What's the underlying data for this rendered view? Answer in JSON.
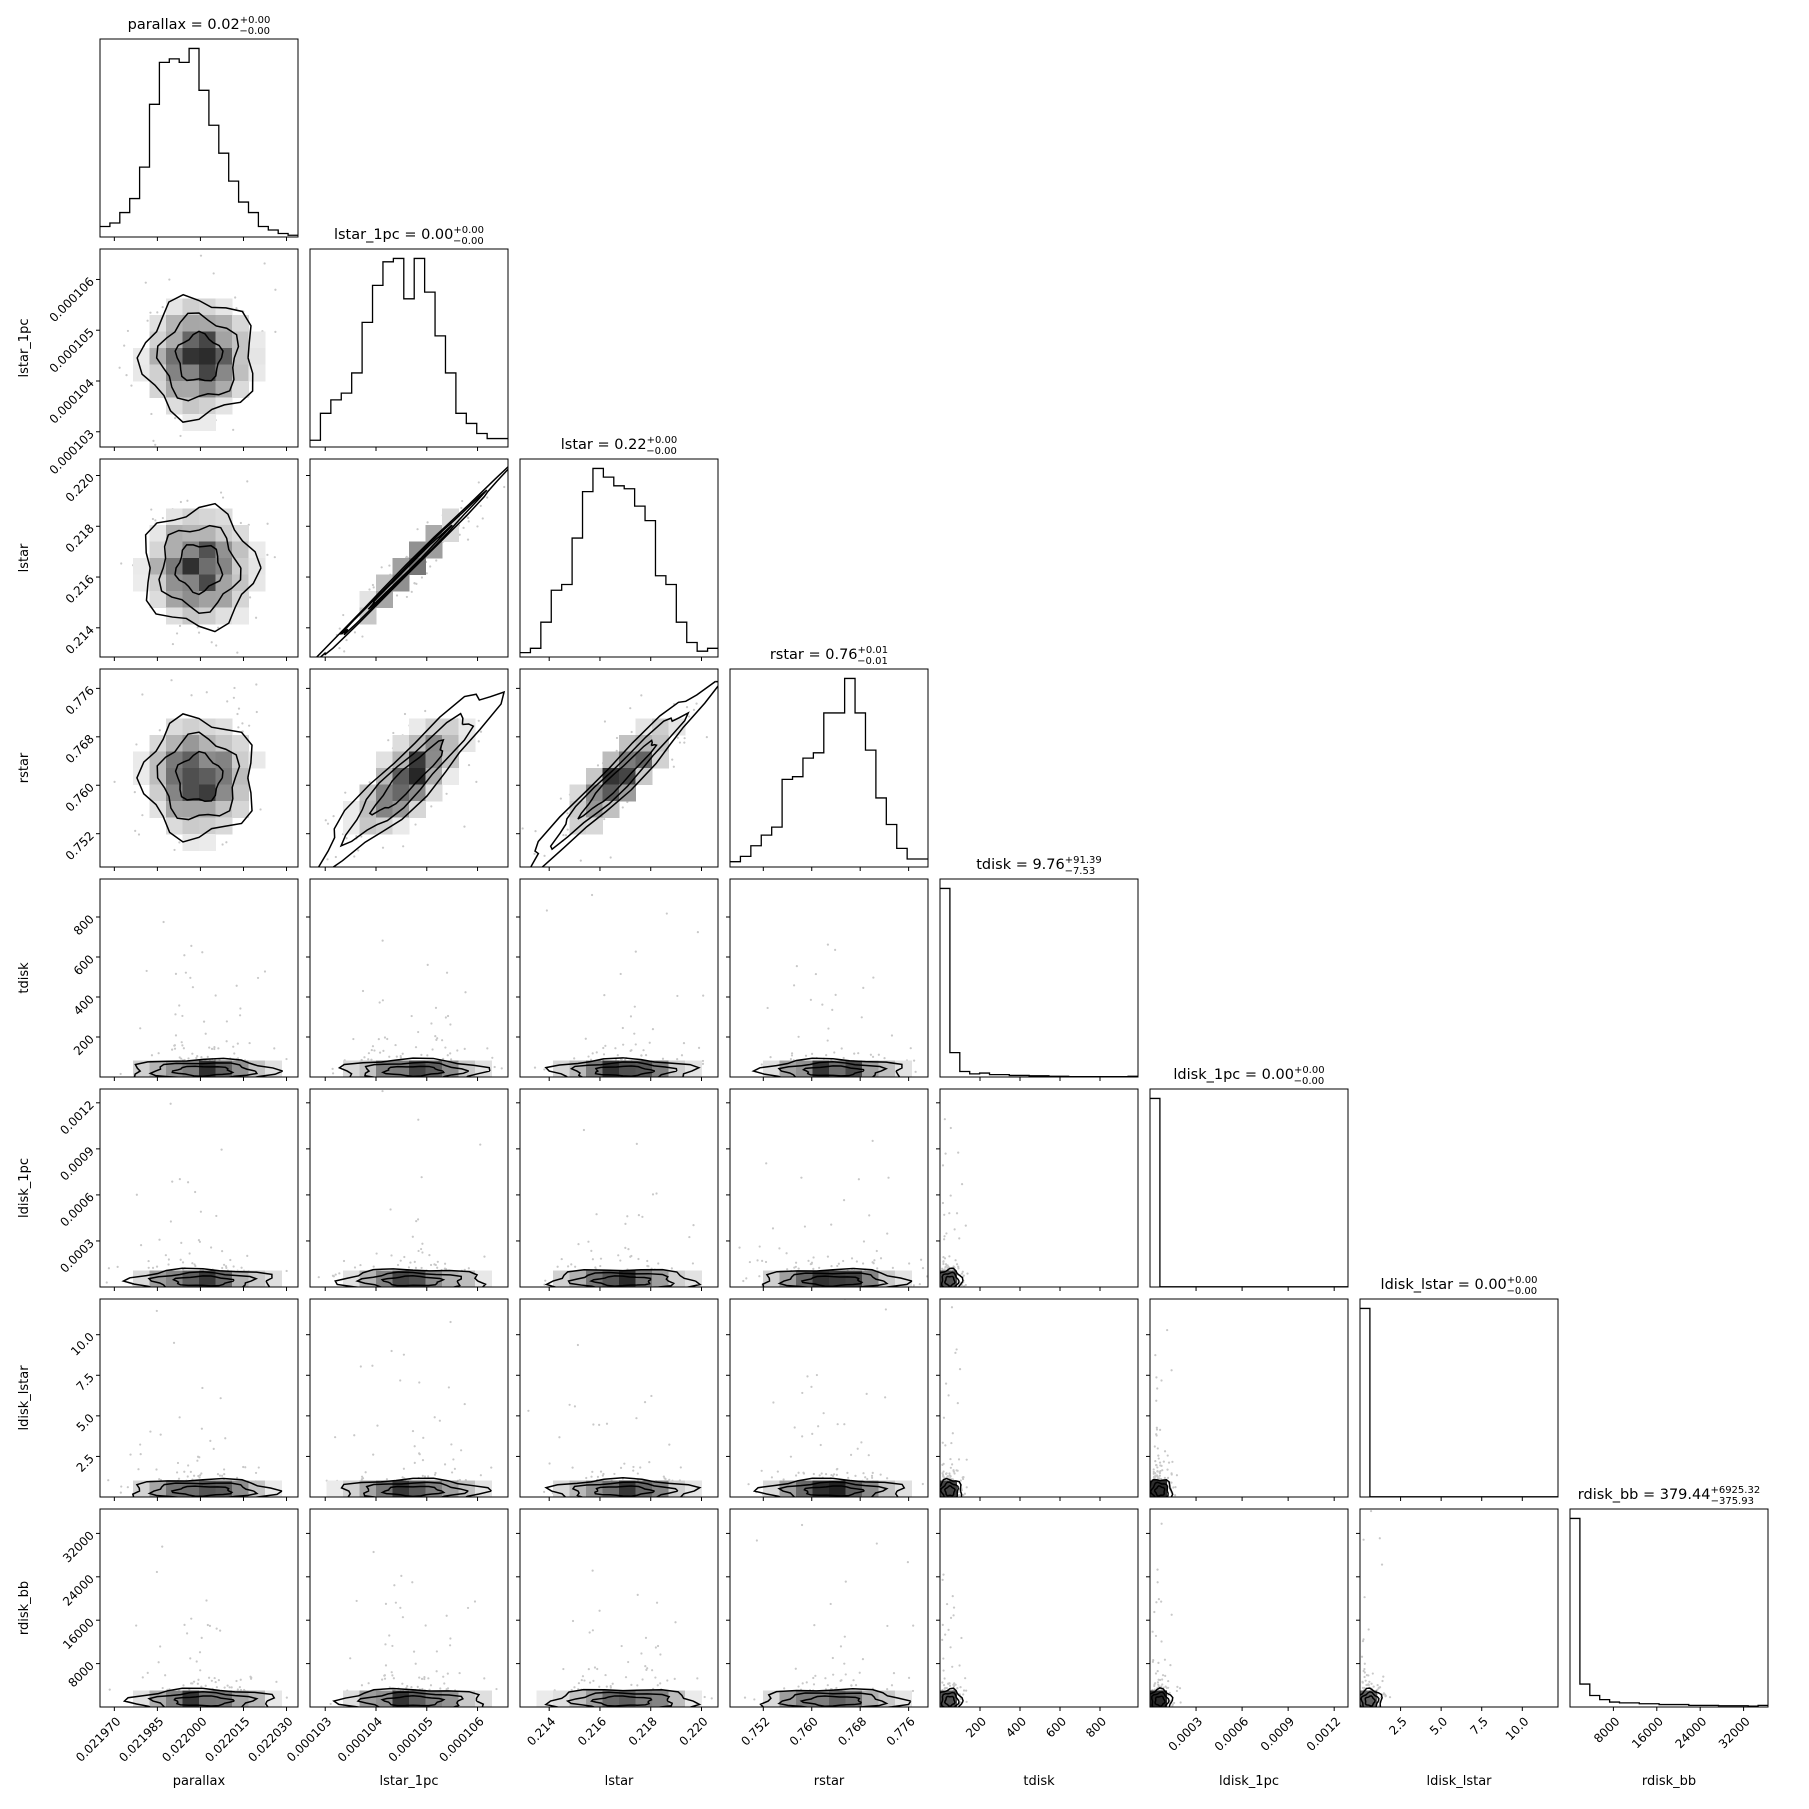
{
  "chart_data": {
    "type": "corner",
    "params": [
      {
        "name": "parallax",
        "label": "parallax",
        "title": "parallax = 0.02",
        "title_sup": "+0.00",
        "title_sub": "−0.00",
        "range": [
          0.021965,
          0.022034
        ],
        "ticks": [
          {
            "v": 0.02197,
            "t": "0.021970"
          },
          {
            "v": 0.021985,
            "t": "0.021985"
          },
          {
            "v": 0.022,
            "t": "0.022000"
          },
          {
            "v": 0.022015,
            "t": "0.022015"
          },
          {
            "v": 0.02203,
            "t": "0.022030"
          }
        ],
        "hist": [
          3,
          4,
          7,
          11,
          20,
          38,
          50,
          51,
          50,
          54,
          42,
          32,
          24,
          16,
          10,
          7,
          3,
          2,
          1,
          0.5
        ]
      },
      {
        "name": "lstar_1pc",
        "label": "lstar_1pc",
        "title": "lstar_1pc = 0.00",
        "title_sup": "+0.00",
        "title_sub": "−0.00",
        "range": [
          0.0001027,
          0.0001066
        ],
        "ticks": [
          {
            "v": 0.000103,
            "t": "0.000103"
          },
          {
            "v": 0.000104,
            "t": "0.000104"
          },
          {
            "v": 0.000105,
            "t": "0.000105"
          },
          {
            "v": 0.000106,
            "t": "0.000106"
          }
        ],
        "hist": [
          2,
          10,
          14,
          16,
          22,
          37,
          48,
          55,
          56,
          44,
          56,
          46,
          33,
          22,
          10,
          7,
          4,
          2.5,
          2.5
        ]
      },
      {
        "name": "lstar",
        "label": "lstar",
        "title": "lstar = 0.22",
        "title_sup": "+0.00",
        "title_sub": "−0.00",
        "range": [
          0.21285,
          0.22065
        ],
        "ticks": [
          {
            "v": 0.214,
            "t": "0.214"
          },
          {
            "v": 0.216,
            "t": "0.216"
          },
          {
            "v": 0.218,
            "t": "0.218"
          },
          {
            "v": 0.22,
            "t": "0.220"
          }
        ],
        "hist": [
          1.5,
          3,
          12,
          23,
          25,
          41,
          57,
          65,
          62,
          59,
          58,
          52,
          47,
          28,
          25,
          12,
          5,
          2,
          3
        ]
      },
      {
        "name": "rstar",
        "label": "rstar",
        "title": "rstar = 0.76",
        "title_sup": "+0.01",
        "title_sub": "−0.01",
        "range": [
          0.7465,
          0.7792
        ],
        "ticks": [
          {
            "v": 0.752,
            "t": "0.752"
          },
          {
            "v": 0.76,
            "t": "0.760"
          },
          {
            "v": 0.768,
            "t": "0.768"
          },
          {
            "v": 0.776,
            "t": "0.776"
          }
        ],
        "hist": [
          2,
          4,
          8,
          12,
          15,
          33,
          34,
          41,
          43,
          58,
          58,
          71,
          58,
          44,
          26,
          16,
          7,
          3,
          3
        ]
      },
      {
        "name": "tdisk",
        "label": "tdisk",
        "title": "tdisk = 9.76",
        "title_sup": "+91.39",
        "title_sub": "−7.53",
        "range": [
          0,
          990
        ],
        "ticks": [
          {
            "v": 200,
            "t": "200"
          },
          {
            "v": 400,
            "t": "400"
          },
          {
            "v": 600,
            "t": "600"
          },
          {
            "v": 800,
            "t": "800"
          }
        ],
        "hist": [
          240,
          31,
          7,
          4,
          5,
          3,
          3,
          2,
          2,
          1.5,
          1.5,
          1,
          1,
          0.5,
          0.5,
          0.5,
          0.5,
          0.5,
          0.5,
          1
        ]
      },
      {
        "name": "ldisk_1pc",
        "label": "ldisk_1pc",
        "title": "ldisk_1pc = 0.00",
        "title_sup": "+0.00",
        "title_sub": "−0.00",
        "range": [
          0,
          0.00129
        ],
        "ticks": [
          {
            "v": 0.0003,
            "t": "0.0003"
          },
          {
            "v": 0.0006,
            "t": "0.0006"
          },
          {
            "v": 0.0009,
            "t": "0.0009"
          },
          {
            "v": 0.0012,
            "t": "0.0012"
          }
        ],
        "hist": [
          280,
          0.3,
          0.3,
          0.3,
          0.3,
          0.3,
          0.3,
          0.3,
          0.3,
          0.3,
          0.3,
          0.3,
          0.3,
          0.3,
          0.3,
          0.3,
          0.3,
          0.3,
          0.3,
          0.3
        ]
      },
      {
        "name": "ldisk_lstar",
        "label": "ldisk_lstar",
        "title": "ldisk_lstar = 0.00",
        "title_sup": "+0.00",
        "title_sub": "−0.00",
        "range": [
          0,
          12.2
        ],
        "ticks": [
          {
            "v": 2.5,
            "t": "2.5"
          },
          {
            "v": 5,
            "t": "5.0"
          },
          {
            "v": 7.5,
            "t": "7.5"
          },
          {
            "v": 10,
            "t": "10.0"
          }
        ],
        "hist": [
          280,
          0.3,
          0.3,
          0.3,
          0.3,
          0.3,
          0.3,
          0.3,
          0.3,
          0.3,
          0.3,
          0.3,
          0.3,
          0.3,
          0.3,
          0.3,
          0.3,
          0.3,
          0.3,
          0.3
        ]
      },
      {
        "name": "rdisk_bb",
        "label": "rdisk_bb",
        "title": "rdisk_bb = 379.44",
        "title_sup": "+6925.32",
        "title_sub": "−375.93",
        "range": [
          0,
          36500
        ],
        "ticks": [
          {
            "v": 8000,
            "t": "8000"
          },
          {
            "v": 16000,
            "t": "16000"
          },
          {
            "v": 24000,
            "t": "24000"
          },
          {
            "v": 32000,
            "t": "32000"
          }
        ],
        "hist": [
          230,
          28,
          14,
          9,
          6,
          5,
          5,
          4,
          4,
          3,
          3,
          3,
          2,
          2,
          2,
          1.5,
          1.5,
          1.5,
          1,
          2
        ]
      }
    ],
    "y_tick_labels": {
      "lstar_1pc": [
        {
          "v": 0.000103,
          "t": "0.000103"
        },
        {
          "v": 0.000104,
          "t": "0.000104"
        },
        {
          "v": 0.000105,
          "t": "0.000105"
        },
        {
          "v": 0.000106,
          "t": "0.000106"
        }
      ],
      "lstar": [
        {
          "v": 0.214,
          "t": "0.214"
        },
        {
          "v": 0.216,
          "t": "0.216"
        },
        {
          "v": 0.218,
          "t": "0.218"
        },
        {
          "v": 0.22,
          "t": "0.220"
        }
      ],
      "rstar": [
        {
          "v": 0.752,
          "t": "0.752"
        },
        {
          "v": 0.76,
          "t": "0.760"
        },
        {
          "v": 0.768,
          "t": "0.768"
        },
        {
          "v": 0.776,
          "t": "0.776"
        }
      ],
      "tdisk": [
        {
          "v": 200,
          "t": "200"
        },
        {
          "v": 400,
          "t": "400"
        },
        {
          "v": 600,
          "t": "600"
        },
        {
          "v": 800,
          "t": "800"
        }
      ],
      "ldisk_1pc": [
        {
          "v": 0.0003,
          "t": "0.0003"
        },
        {
          "v": 0.0006,
          "t": "0.0006"
        },
        {
          "v": 0.0009,
          "t": "0.0009"
        },
        {
          "v": 0.0012,
          "t": "0.0012"
        }
      ],
      "ldisk_lstar": [
        {
          "v": 2.5,
          "t": "2.5"
        },
        {
          "v": 5,
          "t": "5.0"
        },
        {
          "v": 7.5,
          "t": "7.5"
        },
        {
          "v": 10,
          "t": "10.0"
        }
      ],
      "rdisk_bb": [
        {
          "v": 8000,
          "t": "8000"
        },
        {
          "v": 16000,
          "t": "16000"
        },
        {
          "v": 24000,
          "t": "24000"
        },
        {
          "v": 32000,
          "t": "32000"
        }
      ]
    },
    "grid": false,
    "legend": "none",
    "colors": {
      "line": "#000000",
      "density_dark": "#000000",
      "density_light": "#ffffff",
      "scatter": "#c8c8c8"
    }
  }
}
